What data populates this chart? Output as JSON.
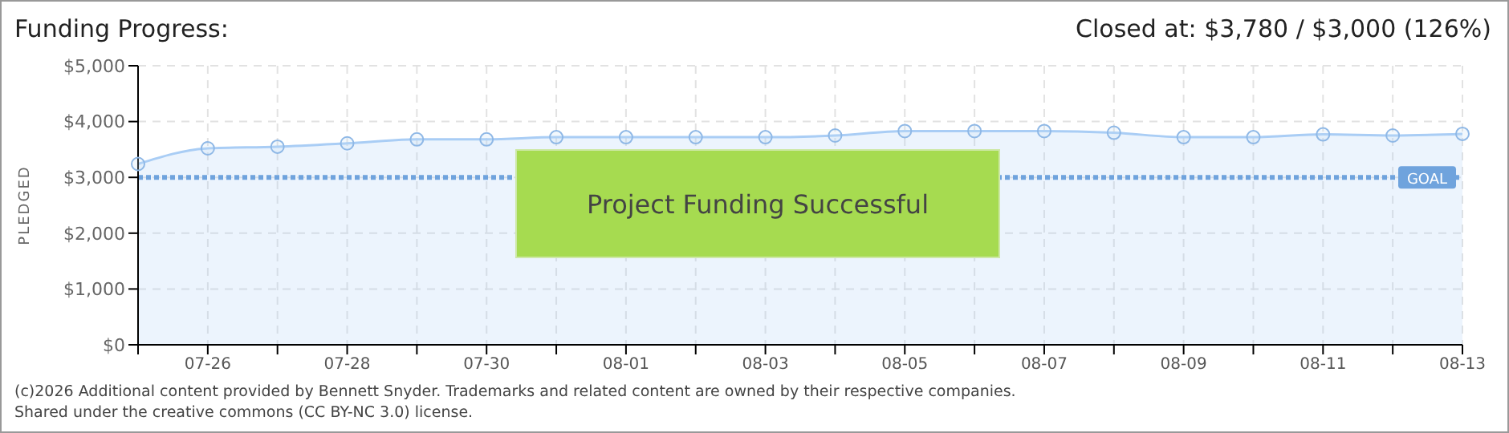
{
  "chart_data": {
    "type": "area",
    "title": "Funding Progress:",
    "ylabel": "PLEDGED",
    "annotations": [
      "Closed at: $3,780 / $3,000 (126%)",
      "Project Funding Successful",
      "(c)2026 Additional content provided by Bennett Snyder. Trademarks and related content are owned by their respective companies.",
      "Shared under the creative commons (CC BY-NC 3.0) license."
    ],
    "categories": [
      null,
      "07-26",
      null,
      "07-28",
      null,
      "07-30",
      null,
      "08-01",
      null,
      "08-03",
      null,
      "08-05",
      null,
      "08-07",
      null,
      "08-09",
      null,
      "08-11",
      null,
      "08-13"
    ],
    "series": [
      {
        "color": "#a9cdf5",
        "values": [
          3240,
          3520,
          3550,
          3610,
          3680,
          3680,
          3720,
          3720,
          3720,
          3720,
          3750,
          3830,
          3830,
          3830,
          3800,
          3720,
          3720,
          3770,
          3750,
          3780
        ]
      }
    ],
    "ylim": [
      0,
      5000
    ],
    "yticks": [
      {
        "value": 0,
        "label": "$0"
      },
      {
        "value": 1000,
        "label": "$1,000"
      },
      {
        "value": 2000,
        "label": "$2,000"
      },
      {
        "value": 3000,
        "label": "$3,000"
      },
      {
        "value": 4000,
        "label": "$4,000"
      },
      {
        "value": 5000,
        "label": "$5,000"
      }
    ],
    "ref_lines": [
      {
        "axis": "y",
        "value": 3000,
        "label": "GOAL",
        "color": "#6fa3dd",
        "line_style": "dotted"
      }
    ],
    "grid": true,
    "marker": "circle",
    "legend": false
  }
}
